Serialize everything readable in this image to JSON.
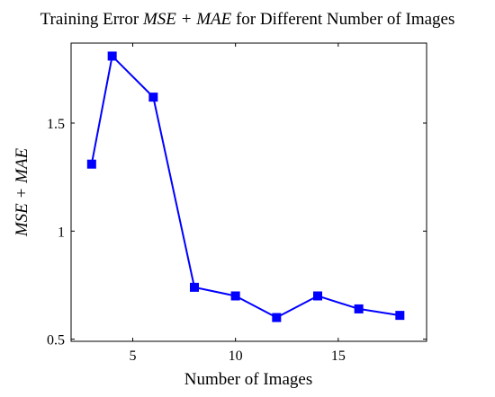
{
  "chart_data": {
    "type": "line",
    "title": {
      "prefix": "Training Error ",
      "math": "MSE + MAE",
      "suffix": " for Different Number of Images"
    },
    "xlabel": "Number of Images",
    "ylabel": "MSE + MAE",
    "xlim": [
      2.0,
      19.3
    ],
    "ylim": [
      0.49,
      1.87
    ],
    "x_ticks": [
      5,
      10,
      15
    ],
    "x_tick_labels": [
      "5",
      "10",
      "15"
    ],
    "y_ticks": [
      0.5,
      1,
      1.5
    ],
    "y_tick_labels": [
      "0.5",
      "1",
      "1.5"
    ],
    "grid": false,
    "legend": null,
    "series": [
      {
        "color": "#0000ff",
        "marker": "square",
        "x": [
          3,
          4,
          6,
          8,
          10,
          12,
          14,
          16,
          18
        ],
        "y": [
          1.31,
          1.81,
          1.62,
          0.74,
          0.7,
          0.6,
          0.7,
          0.64,
          0.61
        ]
      }
    ]
  }
}
